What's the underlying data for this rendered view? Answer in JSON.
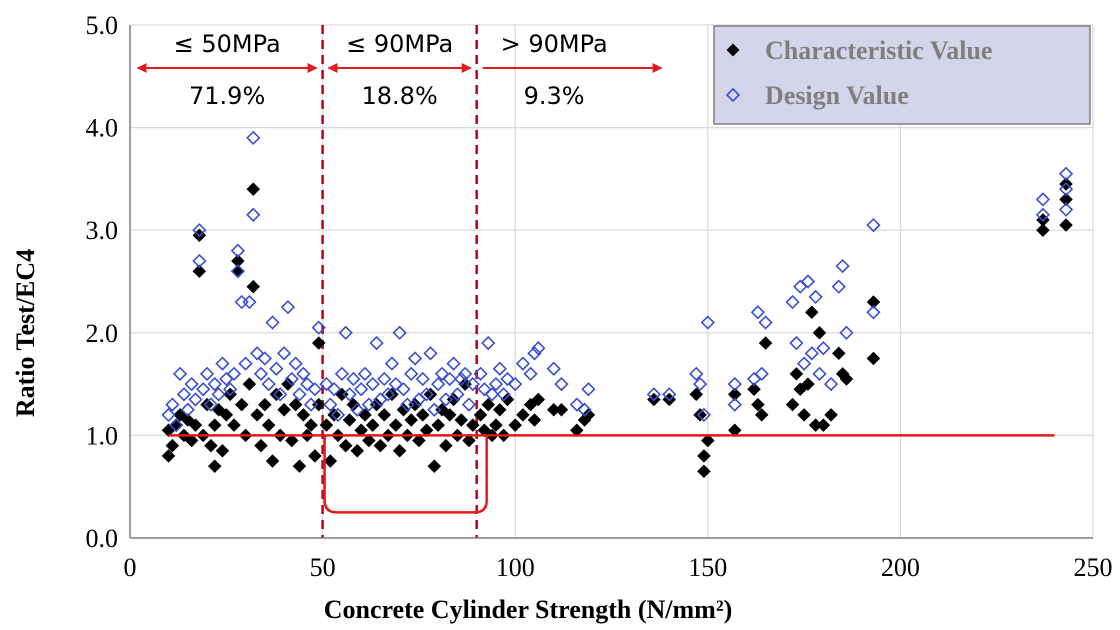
{
  "colors": {
    "characteristic": "#000000",
    "design": "#3a4fd0",
    "threshold": "#e31b1b",
    "divider": "#c0001a",
    "grid": "#d9d9d9",
    "legend_bg": "#d4d4ea"
  },
  "chart_data": {
    "type": "scatter",
    "xlabel": "Concrete Cylinder Strength (N/mm²)",
    "ylabel": "Ratio  Test/EC4",
    "xlim": [
      0,
      250
    ],
    "ylim": [
      0.0,
      5.0
    ],
    "xticks": [
      "0",
      "50",
      "100",
      "150",
      "200",
      "250"
    ],
    "yticks": [
      "0.0",
      "1.0",
      "2.0",
      "3.0",
      "4.0",
      "5.0"
    ],
    "grid": true,
    "legend_position": "top-right",
    "reference_line": {
      "y": 1.0,
      "x_from": 10,
      "x_to": 240
    },
    "dividers": [
      50,
      90
    ],
    "regions": [
      {
        "label": "≤ 50MPa",
        "percent": "71.9%"
      },
      {
        "label": "≤ 90MPa",
        "percent": "18.8%"
      },
      {
        "label": "> 90MPa",
        "percent": "9.3%"
      }
    ],
    "series": [
      {
        "name": "Characteristic Value",
        "marker": "filled-diamond",
        "points": [
          [
            10,
            1.05
          ],
          [
            10,
            0.8
          ],
          [
            11,
            0.9
          ],
          [
            12,
            1.1
          ],
          [
            13,
            1.2
          ],
          [
            14,
            1.0
          ],
          [
            15,
            1.15
          ],
          [
            16,
            0.95
          ],
          [
            17,
            1.1
          ],
          [
            18,
            2.95
          ],
          [
            18,
            2.6
          ],
          [
            19,
            1.0
          ],
          [
            20,
            1.3
          ],
          [
            21,
            0.9
          ],
          [
            22,
            1.1
          ],
          [
            22,
            0.7
          ],
          [
            23,
            1.25
          ],
          [
            24,
            0.85
          ],
          [
            25,
            1.2
          ],
          [
            26,
            1.4
          ],
          [
            27,
            1.1
          ],
          [
            28,
            2.7
          ],
          [
            28,
            2.6
          ],
          [
            29,
            1.3
          ],
          [
            30,
            1.0
          ],
          [
            31,
            1.5
          ],
          [
            32,
            3.4
          ],
          [
            32,
            2.45
          ],
          [
            33,
            1.2
          ],
          [
            34,
            0.9
          ],
          [
            35,
            1.3
          ],
          [
            36,
            1.1
          ],
          [
            37,
            0.75
          ],
          [
            38,
            1.4
          ],
          [
            39,
            1.0
          ],
          [
            40,
            1.25
          ],
          [
            41,
            1.5
          ],
          [
            42,
            0.95
          ],
          [
            43,
            1.3
          ],
          [
            44,
            0.7
          ],
          [
            45,
            1.2
          ],
          [
            46,
            1.0
          ],
          [
            47,
            1.1
          ],
          [
            48,
            0.8
          ],
          [
            49,
            1.9
          ],
          [
            49,
            1.3
          ],
          [
            51,
            1.1
          ],
          [
            52,
            0.75
          ],
          [
            53,
            1.2
          ],
          [
            54,
            1.0
          ],
          [
            55,
            1.4
          ],
          [
            56,
            0.9
          ],
          [
            57,
            1.15
          ],
          [
            58,
            1.3
          ],
          [
            59,
            0.85
          ],
          [
            60,
            1.05
          ],
          [
            61,
            1.2
          ],
          [
            62,
            0.95
          ],
          [
            63,
            1.1
          ],
          [
            64,
            1.3
          ],
          [
            65,
            0.9
          ],
          [
            66,
            1.2
          ],
          [
            67,
            1.0
          ],
          [
            68,
            1.4
          ],
          [
            69,
            1.1
          ],
          [
            70,
            0.85
          ],
          [
            71,
            1.25
          ],
          [
            72,
            1.0
          ],
          [
            73,
            1.15
          ],
          [
            74,
            1.3
          ],
          [
            75,
            0.95
          ],
          [
            76,
            1.2
          ],
          [
            77,
            1.05
          ],
          [
            78,
            1.4
          ],
          [
            79,
            0.7
          ],
          [
            80,
            1.1
          ],
          [
            81,
            1.25
          ],
          [
            82,
            0.9
          ],
          [
            83,
            1.2
          ],
          [
            84,
            1.35
          ],
          [
            85,
            1.0
          ],
          [
            86,
            1.15
          ],
          [
            87,
            1.5
          ],
          [
            88,
            0.95
          ],
          [
            89,
            1.1
          ],
          [
            91,
            1.2
          ],
          [
            92,
            1.05
          ],
          [
            93,
            1.3
          ],
          [
            94,
            1.0
          ],
          [
            95,
            1.1
          ],
          [
            96,
            1.25
          ],
          [
            97,
            1.0
          ],
          [
            98,
            1.35
          ],
          [
            100,
            1.1
          ],
          [
            102,
            1.2
          ],
          [
            104,
            1.3
          ],
          [
            105,
            1.15
          ],
          [
            106,
            1.35
          ],
          [
            110,
            1.25
          ],
          [
            112,
            1.25
          ],
          [
            116,
            1.05
          ],
          [
            118,
            1.15
          ],
          [
            119,
            1.2
          ],
          [
            136,
            1.35
          ],
          [
            140,
            1.35
          ],
          [
            147,
            1.4
          ],
          [
            148,
            1.2
          ],
          [
            149,
            0.8
          ],
          [
            149,
            0.65
          ],
          [
            150,
            0.95
          ],
          [
            157,
            1.05
          ],
          [
            157,
            1.4
          ],
          [
            162,
            1.45
          ],
          [
            163,
            1.3
          ],
          [
            164,
            1.2
          ],
          [
            165,
            1.9
          ],
          [
            172,
            1.3
          ],
          [
            173,
            1.6
          ],
          [
            174,
            1.45
          ],
          [
            175,
            1.2
          ],
          [
            176,
            1.5
          ],
          [
            177,
            2.2
          ],
          [
            178,
            1.1
          ],
          [
            179,
            2.0
          ],
          [
            180,
            1.1
          ],
          [
            182,
            1.2
          ],
          [
            184,
            1.8
          ],
          [
            185,
            1.6
          ],
          [
            186,
            1.55
          ],
          [
            193,
            2.3
          ],
          [
            193,
            1.75
          ],
          [
            237,
            3.0
          ],
          [
            237,
            3.1
          ],
          [
            243,
            3.45
          ],
          [
            243,
            3.3
          ],
          [
            243,
            3.05
          ]
        ]
      },
      {
        "name": "Design Value",
        "marker": "hollow-diamond",
        "points": [
          [
            10,
            1.2
          ],
          [
            11,
            1.3
          ],
          [
            12,
            1.1
          ],
          [
            13,
            1.6
          ],
          [
            14,
            1.4
          ],
          [
            15,
            1.25
          ],
          [
            16,
            1.5
          ],
          [
            17,
            1.35
          ],
          [
            18,
            3.0
          ],
          [
            18,
            2.7
          ],
          [
            19,
            1.45
          ],
          [
            20,
            1.6
          ],
          [
            21,
            1.3
          ],
          [
            22,
            1.5
          ],
          [
            23,
            1.4
          ],
          [
            24,
            1.7
          ],
          [
            25,
            1.55
          ],
          [
            26,
            1.45
          ],
          [
            27,
            1.6
          ],
          [
            28,
            2.8
          ],
          [
            28,
            2.6
          ],
          [
            29,
            2.3
          ],
          [
            30,
            1.7
          ],
          [
            31,
            2.3
          ],
          [
            32,
            3.9
          ],
          [
            32,
            3.15
          ],
          [
            33,
            1.8
          ],
          [
            34,
            1.6
          ],
          [
            35,
            1.75
          ],
          [
            36,
            1.5
          ],
          [
            37,
            2.1
          ],
          [
            38,
            1.65
          ],
          [
            39,
            1.4
          ],
          [
            40,
            1.8
          ],
          [
            41,
            2.25
          ],
          [
            42,
            1.55
          ],
          [
            43,
            1.7
          ],
          [
            44,
            1.4
          ],
          [
            45,
            1.6
          ],
          [
            46,
            1.5
          ],
          [
            47,
            1.3
          ],
          [
            48,
            1.45
          ],
          [
            49,
            2.05
          ],
          [
            51,
            1.5
          ],
          [
            52,
            1.3
          ],
          [
            53,
            1.45
          ],
          [
            54,
            1.2
          ],
          [
            55,
            1.6
          ],
          [
            56,
            2.0
          ],
          [
            57,
            1.4
          ],
          [
            58,
            1.55
          ],
          [
            59,
            1.25
          ],
          [
            60,
            1.45
          ],
          [
            61,
            1.6
          ],
          [
            62,
            1.3
          ],
          [
            63,
            1.5
          ],
          [
            64,
            1.9
          ],
          [
            65,
            1.35
          ],
          [
            66,
            1.55
          ],
          [
            67,
            1.4
          ],
          [
            68,
            1.7
          ],
          [
            69,
            1.5
          ],
          [
            70,
            2.0
          ],
          [
            71,
            1.45
          ],
          [
            72,
            1.3
          ],
          [
            73,
            1.6
          ],
          [
            74,
            1.75
          ],
          [
            75,
            1.35
          ],
          [
            76,
            1.55
          ],
          [
            77,
            1.4
          ],
          [
            78,
            1.8
          ],
          [
            79,
            1.25
          ],
          [
            80,
            1.5
          ],
          [
            81,
            1.6
          ],
          [
            82,
            1.35
          ],
          [
            83,
            1.55
          ],
          [
            84,
            1.7
          ],
          [
            85,
            1.4
          ],
          [
            86,
            1.55
          ],
          [
            87,
            1.6
          ],
          [
            88,
            1.3
          ],
          [
            89,
            1.5
          ],
          [
            91,
            1.6
          ],
          [
            92,
            1.45
          ],
          [
            93,
            1.9
          ],
          [
            94,
            1.4
          ],
          [
            95,
            1.5
          ],
          [
            96,
            1.65
          ],
          [
            97,
            1.4
          ],
          [
            98,
            1.55
          ],
          [
            100,
            1.5
          ],
          [
            102,
            1.7
          ],
          [
            104,
            1.6
          ],
          [
            105,
            1.8
          ],
          [
            106,
            1.85
          ],
          [
            110,
            1.65
          ],
          [
            112,
            1.5
          ],
          [
            116,
            1.3
          ],
          [
            118,
            1.25
          ],
          [
            119,
            1.45
          ],
          [
            136,
            1.4
          ],
          [
            140,
            1.4
          ],
          [
            147,
            1.6
          ],
          [
            148,
            1.5
          ],
          [
            149,
            1.2
          ],
          [
            150,
            2.1
          ],
          [
            157,
            1.5
          ],
          [
            157,
            1.3
          ],
          [
            162,
            1.55
          ],
          [
            163,
            2.2
          ],
          [
            164,
            1.6
          ],
          [
            165,
            2.1
          ],
          [
            172,
            2.3
          ],
          [
            173,
            1.9
          ],
          [
            174,
            2.45
          ],
          [
            175,
            1.7
          ],
          [
            176,
            2.5
          ],
          [
            177,
            1.8
          ],
          [
            178,
            2.35
          ],
          [
            179,
            1.6
          ],
          [
            180,
            1.85
          ],
          [
            182,
            1.5
          ],
          [
            184,
            2.45
          ],
          [
            185,
            2.65
          ],
          [
            186,
            2.0
          ],
          [
            193,
            3.05
          ],
          [
            193,
            2.2
          ],
          [
            237,
            3.15
          ],
          [
            237,
            3.3
          ],
          [
            243,
            3.55
          ],
          [
            243,
            3.4
          ],
          [
            243,
            3.2
          ]
        ]
      }
    ]
  }
}
